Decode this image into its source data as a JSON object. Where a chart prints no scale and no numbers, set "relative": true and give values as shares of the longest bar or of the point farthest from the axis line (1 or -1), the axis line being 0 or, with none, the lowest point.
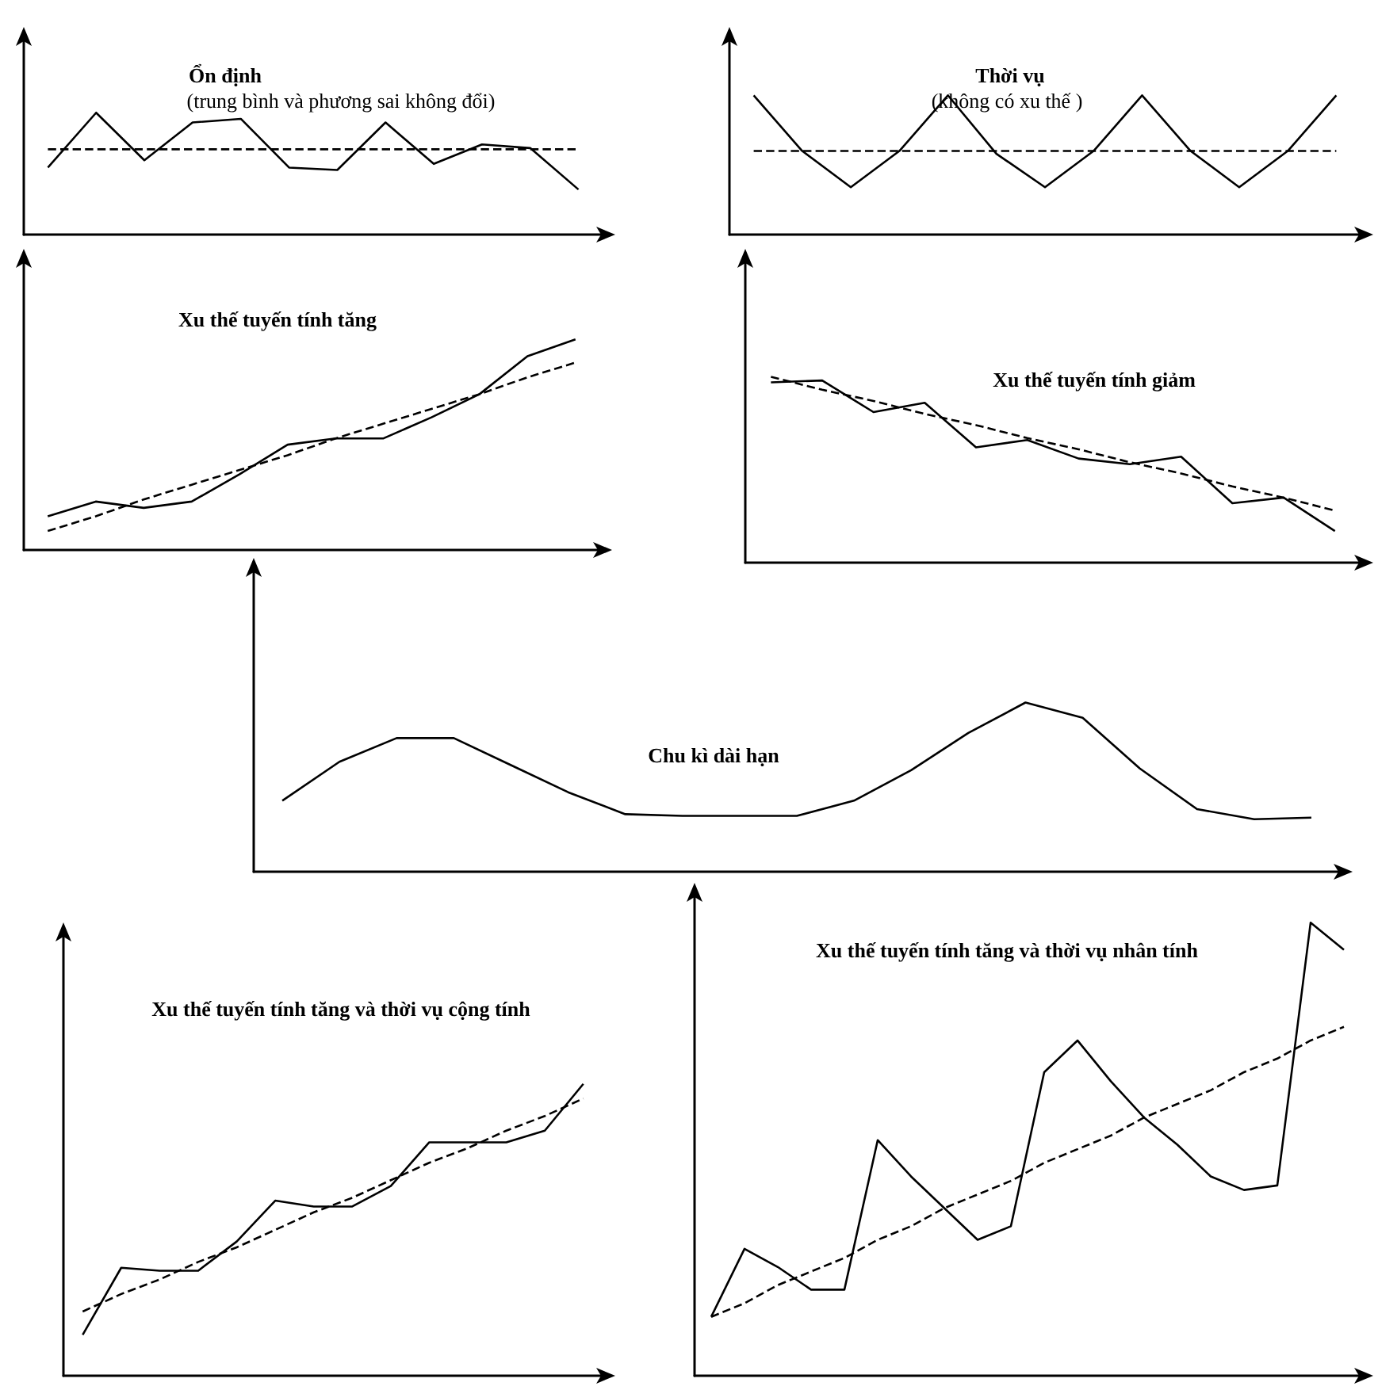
{
  "chart_data": [
    {
      "type": "line",
      "title": "Ổn định",
      "subtitle": "(trung bình và phương sai không đổi)",
      "relative": true,
      "marker": "none",
      "tick_labels": false,
      "categories": [
        null,
        null,
        null,
        null,
        null,
        null,
        null,
        null,
        null,
        null,
        null,
        null
      ],
      "series": [
        {
          "color": "#000000",
          "line_style": "solid",
          "values": [
            0.55,
            1,
            0.61,
            0.92,
            0.95,
            0.55,
            0.53,
            0.92,
            0.58,
            0.74,
            0.71,
            0.37
          ]
        },
        {
          "color": "#000000",
          "line_style": "dashed",
          "values": [
            0.7,
            0.7,
            0.7,
            0.7,
            0.7,
            0.7,
            0.7,
            0.7,
            0.7,
            0.7,
            0.7,
            0.7
          ]
        }
      ]
    },
    {
      "type": "line",
      "title": "Thời vụ",
      "subtitle": "(không có xu thế )",
      "relative": true,
      "marker": "none",
      "tick_labels": false,
      "categories": [
        null,
        null,
        null,
        null,
        null,
        null,
        null,
        null,
        null,
        null,
        null,
        null,
        null
      ],
      "series": [
        {
          "color": "#000000",
          "line_style": "solid",
          "values": [
            1,
            0.6,
            0.34,
            0.6,
            1,
            0.58,
            0.34,
            0.6,
            1,
            0.6,
            0.34,
            0.6,
            1
          ]
        },
        {
          "color": "#000000",
          "line_style": "dashed",
          "values": [
            0.6,
            0.6,
            0.6,
            0.6,
            0.6,
            0.6,
            0.6,
            0.6,
            0.6,
            0.6,
            0.6,
            0.6,
            0.6
          ]
        }
      ]
    },
    {
      "type": "line",
      "title": "Xu thế tuyến tính tăng",
      "relative": true,
      "marker": "none",
      "tick_labels": false,
      "categories": [
        null,
        null,
        null,
        null,
        null,
        null,
        null,
        null,
        null,
        null,
        null,
        null
      ],
      "series": [
        {
          "color": "#000000",
          "line_style": "solid",
          "values": [
            0.16,
            0.23,
            0.2,
            0.23,
            0.36,
            0.5,
            0.53,
            0.53,
            0.63,
            0.74,
            0.92,
            1
          ]
        },
        {
          "color": "#000000",
          "line_style": "dashed",
          "values": [
            0.09,
            0.16,
            0.24,
            0.31,
            0.38,
            0.45,
            0.53,
            0.6,
            0.67,
            0.74,
            0.82,
            0.89
          ]
        }
      ]
    },
    {
      "type": "line",
      "title": "Xu thế tuyến tính giảm",
      "relative": true,
      "marker": "none",
      "tick_labels": false,
      "categories": [
        null,
        null,
        null,
        null,
        null,
        null,
        null,
        null,
        null,
        null,
        null,
        null
      ],
      "series": [
        {
          "color": "#000000",
          "line_style": "solid",
          "values": [
            0.97,
            0.98,
            0.81,
            0.86,
            0.62,
            0.66,
            0.56,
            0.53,
            0.57,
            0.32,
            0.35,
            0.17
          ]
        },
        {
          "color": "#000000",
          "line_style": "dashed",
          "values": [
            1,
            0.93,
            0.87,
            0.8,
            0.74,
            0.67,
            0.61,
            0.54,
            0.48,
            0.41,
            0.35,
            0.28
          ]
        }
      ]
    },
    {
      "type": "line",
      "title": "Chu kì dài hạn",
      "relative": true,
      "marker": "none",
      "tick_labels": false,
      "categories": [
        null,
        null,
        null,
        null,
        null,
        null,
        null,
        null,
        null,
        null,
        null,
        null,
        null,
        null,
        null,
        null,
        null,
        null,
        null
      ],
      "series": [
        {
          "color": "#000000",
          "line_style": "solid",
          "values": [
            0.42,
            0.65,
            0.79,
            0.79,
            0.63,
            0.47,
            0.34,
            0.33,
            0.33,
            0.33,
            0.42,
            0.6,
            0.82,
            1,
            0.91,
            0.61,
            0.37,
            0.31,
            0.32
          ]
        }
      ]
    },
    {
      "type": "line",
      "title": "Xu thế tuyến tính tăng và thời vụ cộng tính",
      "relative": true,
      "marker": "none",
      "tick_labels": false,
      "categories": [
        null,
        null,
        null,
        null,
        null,
        null,
        null,
        null,
        null,
        null,
        null,
        null,
        null,
        null
      ],
      "series": [
        {
          "color": "#000000",
          "line_style": "solid",
          "values": [
            0.14,
            0.37,
            0.36,
            0.36,
            0.46,
            0.6,
            0.58,
            0.58,
            0.65,
            0.8,
            0.8,
            0.8,
            0.84,
            1
          ]
        },
        {
          "color": "#000000",
          "line_style": "dashed",
          "values": [
            0.22,
            0.28,
            0.33,
            0.39,
            0.44,
            0.5,
            0.56,
            0.61,
            0.67,
            0.73,
            0.78,
            0.84,
            0.89,
            0.95
          ]
        }
      ]
    },
    {
      "type": "line",
      "title": "Xu thế tuyến tính tăng và thời vụ nhân tính",
      "relative": true,
      "marker": "none",
      "tick_labels": false,
      "categories": [
        null,
        null,
        null,
        null,
        null,
        null,
        null,
        null,
        null,
        null,
        null,
        null,
        null,
        null,
        null,
        null,
        null,
        null,
        null,
        null
      ],
      "series": [
        {
          "color": "#000000",
          "line_style": "solid",
          "values": [
            0.13,
            0.28,
            0.24,
            0.19,
            0.19,
            0.52,
            0.44,
            0.37,
            0.3,
            0.33,
            0.67,
            0.74,
            0.65,
            0.57,
            0.51,
            0.44,
            0.41,
            0.42,
            1,
            0.94
          ]
        },
        {
          "color": "#000000",
          "line_style": "dashed",
          "values": [
            0.13,
            0.16,
            0.2,
            0.23,
            0.26,
            0.3,
            0.33,
            0.37,
            0.4,
            0.43,
            0.47,
            0.5,
            0.53,
            0.57,
            0.6,
            0.63,
            0.67,
            0.7,
            0.74,
            0.77
          ]
        }
      ]
    }
  ]
}
